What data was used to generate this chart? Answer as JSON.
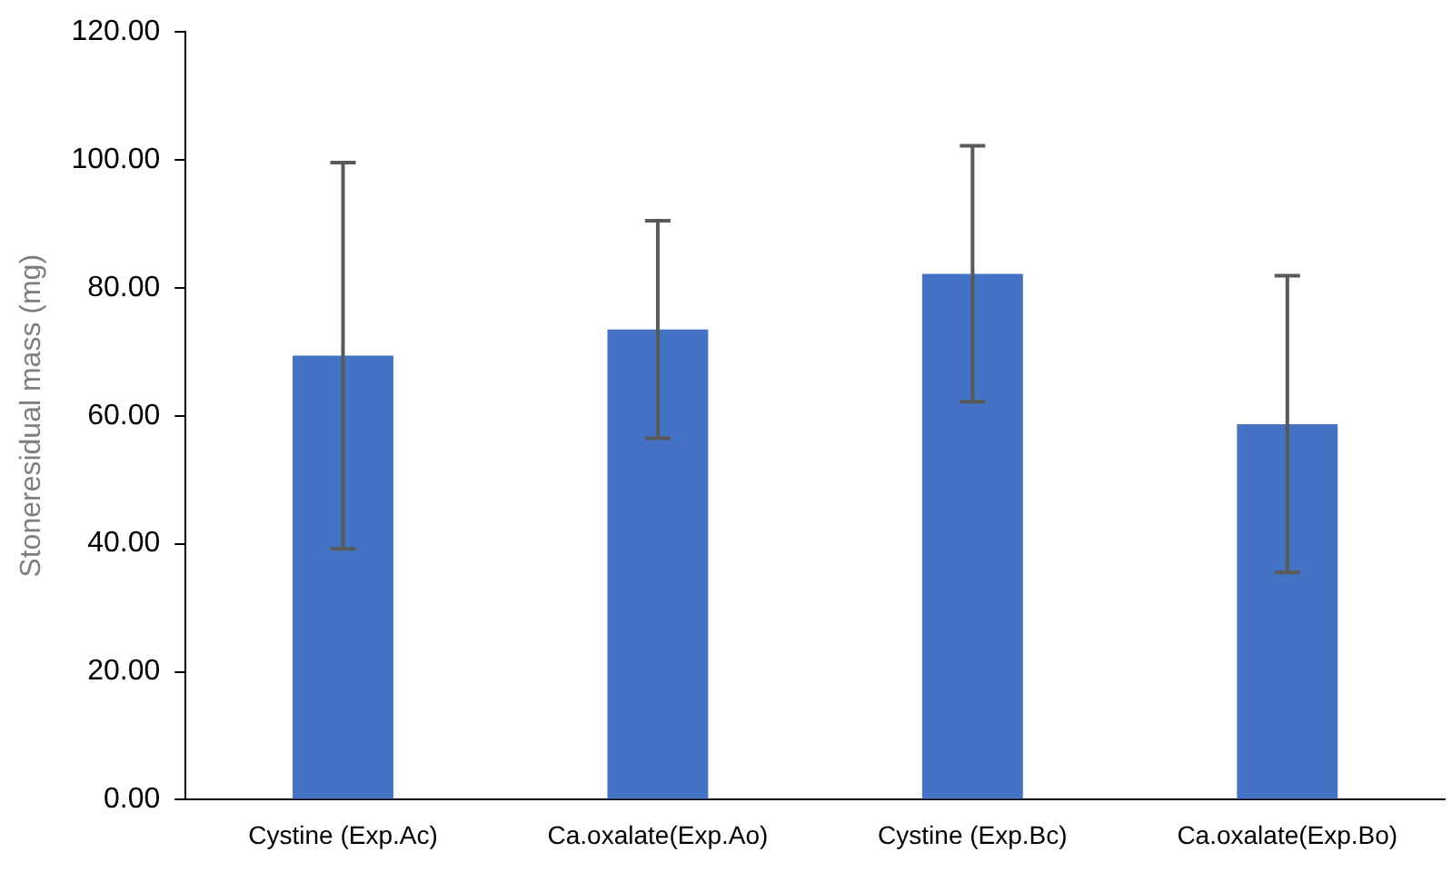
{
  "chart_data": {
    "type": "bar",
    "ylabel": "Stoneresidual mass (mg)",
    "categories": [
      "Cystine (Exp.Ac)",
      "Ca.oxalate(Exp.Ao)",
      "Cystine (Exp.Bc)",
      "Ca.oxalate(Exp.Bo)"
    ],
    "values": [
      69.4,
      73.5,
      82.2,
      58.7
    ],
    "errors": [
      30.2,
      17,
      20,
      23.2
    ],
    "color": "#4472c4",
    "ylim": [
      0,
      120
    ],
    "yticks": [
      {
        "value": 0,
        "label": "0.00"
      },
      {
        "value": 20,
        "label": "20.00"
      },
      {
        "value": 40,
        "label": "40.00"
      },
      {
        "value": 60,
        "label": "60.00"
      },
      {
        "value": 80,
        "label": "80.00"
      },
      {
        "value": 100,
        "label": "100.00"
      },
      {
        "value": 120,
        "label": "120.00"
      }
    ],
    "grid": false,
    "legend": false
  }
}
